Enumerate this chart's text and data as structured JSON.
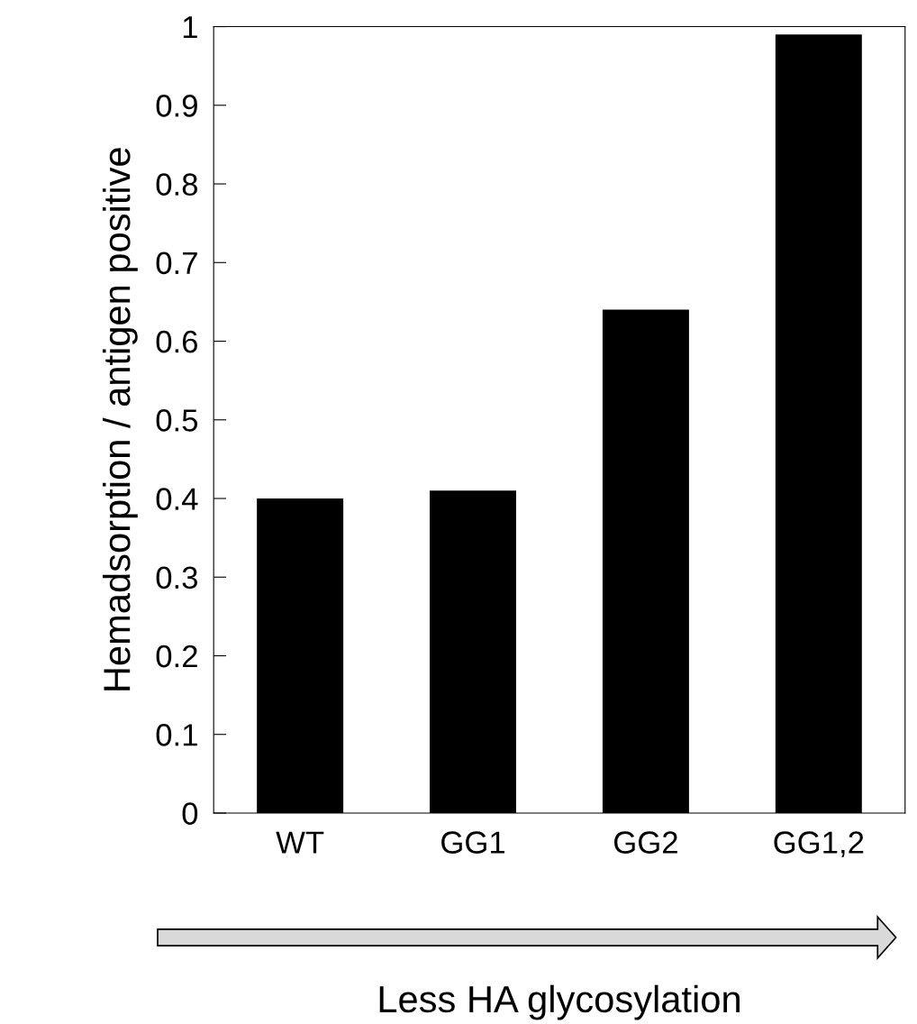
{
  "chart_data": {
    "type": "bar",
    "ylabel": "Hemadsorption / antigen positive",
    "xlabel": "Less HA glycosylation",
    "categories": [
      "WT",
      "GG1",
      "GG2",
      "GG1,2"
    ],
    "values": [
      0.4,
      0.41,
      0.64,
      0.99
    ],
    "color": "#000000",
    "ylim": [
      0,
      1
    ],
    "yticks": [
      0,
      0.1,
      0.2,
      0.3,
      0.4,
      0.5,
      0.6,
      0.7,
      0.8,
      0.9,
      1
    ],
    "grid": false
  }
}
